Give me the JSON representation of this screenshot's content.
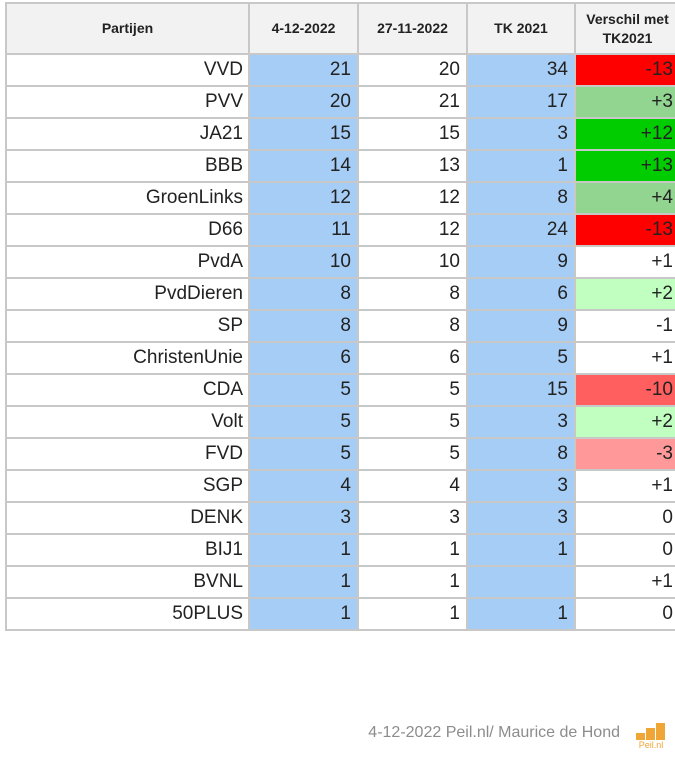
{
  "table": {
    "headers": [
      "Partijen",
      "4-12-2022",
      "27-11-2022",
      "TK 2021",
      "Verschil met TK2021"
    ],
    "rows": [
      {
        "party": "VVD",
        "current": "21",
        "previous": "20",
        "tk2021": "34",
        "diff": "-13",
        "diff_color": "#ff0000"
      },
      {
        "party": "PVV",
        "current": "20",
        "previous": "21",
        "tk2021": "17",
        "diff": "+3",
        "diff_color": "#92d591"
      },
      {
        "party": "JA21",
        "current": "15",
        "previous": "15",
        "tk2021": "3",
        "diff": "+12",
        "diff_color": "#00cc00"
      },
      {
        "party": "BBB",
        "current": "14",
        "previous": "13",
        "tk2021": "1",
        "diff": "+13",
        "diff_color": "#00cc00"
      },
      {
        "party": "GroenLinks",
        "current": "12",
        "previous": "12",
        "tk2021": "8",
        "diff": "+4",
        "diff_color": "#92d591"
      },
      {
        "party": "D66",
        "current": "11",
        "previous": "12",
        "tk2021": "24",
        "diff": "-13",
        "diff_color": "#ff0000"
      },
      {
        "party": "PvdA",
        "current": "10",
        "previous": "10",
        "tk2021": "9",
        "diff": "+1",
        "diff_color": "#ffffff"
      },
      {
        "party": "PvdDieren",
        "current": "8",
        "previous": "8",
        "tk2021": "6",
        "diff": "+2",
        "diff_color": "#c0ffc0"
      },
      {
        "party": "SP",
        "current": "8",
        "previous": "8",
        "tk2021": "9",
        "diff": "-1",
        "diff_color": "#ffffff"
      },
      {
        "party": "ChristenUnie",
        "current": "6",
        "previous": "6",
        "tk2021": "5",
        "diff": "+1",
        "diff_color": "#ffffff"
      },
      {
        "party": "CDA",
        "current": "5",
        "previous": "5",
        "tk2021": "15",
        "diff": "-10",
        "diff_color": "#ff5f5f"
      },
      {
        "party": "Volt",
        "current": "5",
        "previous": "5",
        "tk2021": "3",
        "diff": "+2",
        "diff_color": "#c0ffc0"
      },
      {
        "party": "FVD",
        "current": "5",
        "previous": "5",
        "tk2021": "8",
        "diff": "-3",
        "diff_color": "#ff9999"
      },
      {
        "party": "SGP",
        "current": "4",
        "previous": "4",
        "tk2021": "3",
        "diff": "+1",
        "diff_color": "#ffffff"
      },
      {
        "party": "DENK",
        "current": "3",
        "previous": "3",
        "tk2021": "3",
        "diff": "0",
        "diff_color": "#ffffff"
      },
      {
        "party": "BIJ1",
        "current": "1",
        "previous": "1",
        "tk2021": "1",
        "diff": "0",
        "diff_color": "#ffffff"
      },
      {
        "party": "BVNL",
        "current": "1",
        "previous": "1",
        "tk2021": "",
        "diff": "+1",
        "diff_color": "#ffffff"
      },
      {
        "party": "50PLUS",
        "current": "1",
        "previous": "1",
        "tk2021": "1",
        "diff": "0",
        "diff_color": "#ffffff"
      }
    ]
  },
  "footer": {
    "credit": "4-12-2022 Peil.nl/ Maurice de Hond",
    "logo_text": "Peil.nl"
  },
  "colors": {
    "highlight_blue": "#a6cdf5",
    "logo_orange": "#f0a637"
  }
}
